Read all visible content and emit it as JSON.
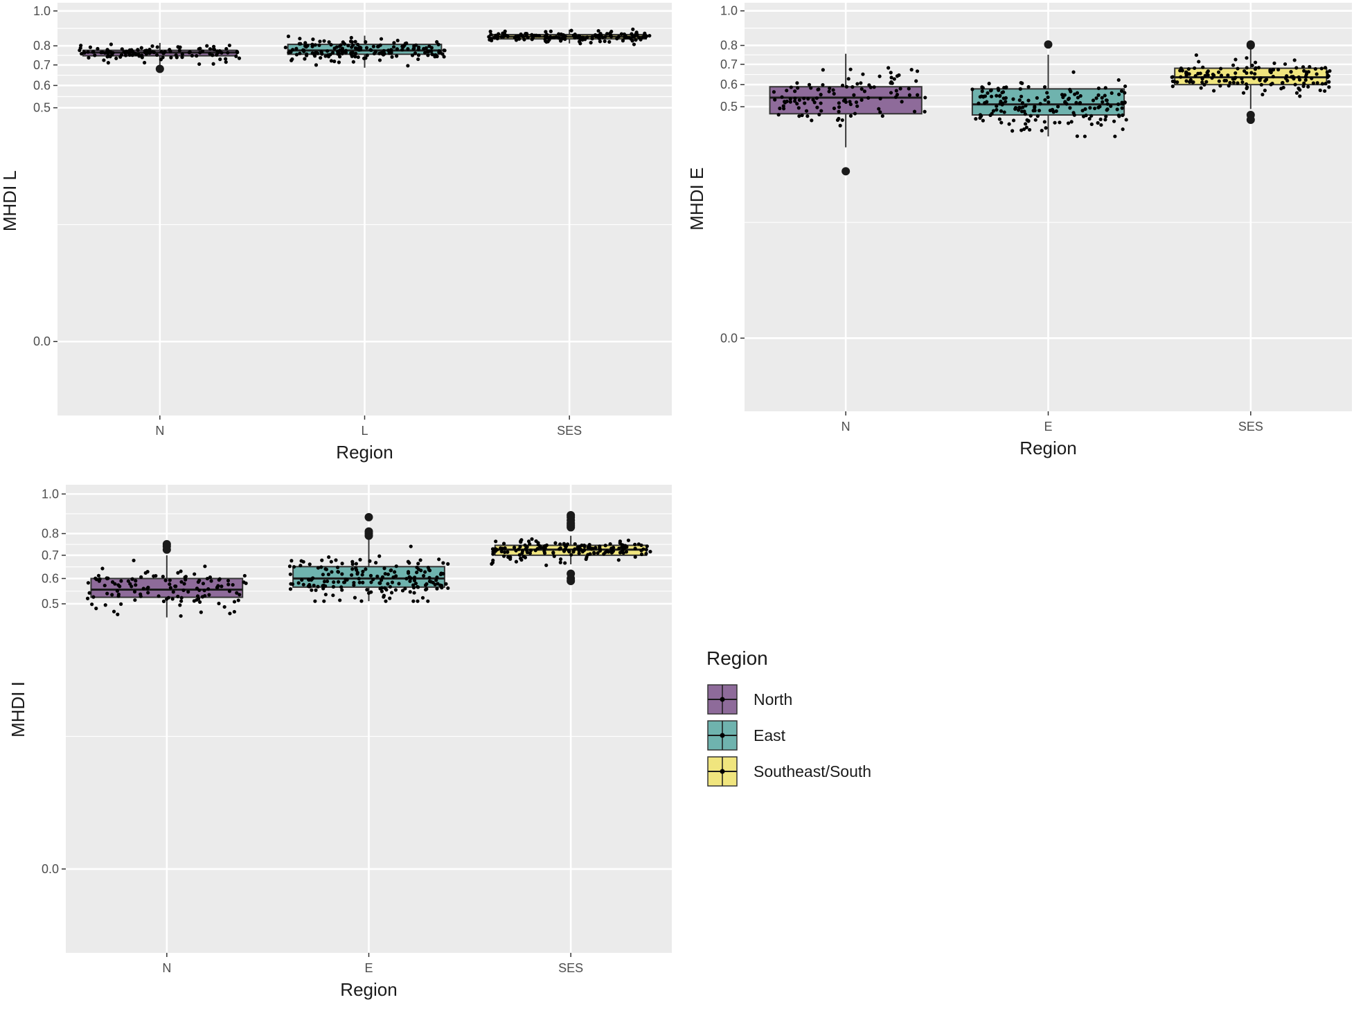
{
  "chart_data": [
    {
      "id": "mhdi-l",
      "type": "boxplot",
      "xlabel": "Region",
      "ylabel": "MHDI L",
      "categories": [
        "N",
        "L",
        "SES"
      ],
      "y_ticks": [
        0.0,
        0.5,
        0.6,
        0.7,
        0.8,
        1.0
      ],
      "y_tick_labels": [
        "0.0",
        "0.5",
        "0.6",
        "0.7",
        "0.8",
        "1.0"
      ],
      "ylim": [
        -0.05,
        1.05
      ],
      "y_scale": "sqrt",
      "grid": true,
      "boxes": [
        {
          "category": "N",
          "region": "North",
          "q1": 0.747,
          "median": 0.764,
          "q3": 0.776,
          "whisker_low": 0.7,
          "whisker_high": 0.816,
          "outliers": [
            0.68
          ],
          "spread": 0.028,
          "n": 120,
          "lo": 0.68,
          "hi": 0.82
        },
        {
          "category": "L",
          "region": "East",
          "q1": 0.755,
          "median": 0.775,
          "q3": 0.808,
          "whisker_low": 0.686,
          "whisker_high": 0.856,
          "outliers": [],
          "spread": 0.04,
          "n": 170,
          "lo": 0.675,
          "hi": 0.86
        },
        {
          "category": "SES",
          "region": "Southeast/South",
          "q1": 0.838,
          "median": 0.85,
          "q3": 0.862,
          "whisker_low": 0.813,
          "whisker_high": 0.89,
          "outliers": [],
          "spread": 0.02,
          "n": 140,
          "lo": 0.805,
          "hi": 0.892
        }
      ]
    },
    {
      "id": "mhdi-e",
      "type": "boxplot",
      "xlabel": "Region",
      "ylabel": "MHDI E",
      "categories": [
        "N",
        "E",
        "SES"
      ],
      "y_ticks": [
        0.0,
        0.5,
        0.6,
        0.7,
        0.8,
        1.0
      ],
      "y_tick_labels": [
        "0.0",
        "0.5",
        "0.6",
        "0.7",
        "0.8",
        "1.0"
      ],
      "ylim": [
        -0.05,
        1.05
      ],
      "y_scale": "sqrt",
      "grid": true,
      "boxes": [
        {
          "category": "N",
          "region": "North",
          "q1": 0.47,
          "median": 0.54,
          "q3": 0.59,
          "whisker_low": 0.34,
          "whisker_high": 0.755,
          "outliers": [
            0.26
          ],
          "spread": 0.08,
          "n": 110,
          "lo": 0.26,
          "hi": 0.76
        },
        {
          "category": "E",
          "region": "East",
          "q1": 0.465,
          "median": 0.51,
          "q3": 0.58,
          "whisker_low": 0.38,
          "whisker_high": 0.75,
          "outliers": [
            0.805
          ],
          "spread": 0.08,
          "n": 180,
          "lo": 0.38,
          "hi": 0.81
        },
        {
          "category": "SES",
          "region": "Southeast/South",
          "q1": 0.6,
          "median": 0.635,
          "q3": 0.68,
          "whisker_low": 0.49,
          "whisker_high": 0.78,
          "outliers": [
            0.445,
            0.465,
            0.8,
            0.805
          ],
          "spread": 0.05,
          "n": 150,
          "lo": 0.47,
          "hi": 0.81
        }
      ]
    },
    {
      "id": "mhdi-i",
      "type": "boxplot",
      "xlabel": "Region",
      "ylabel": "MHDI I",
      "categories": [
        "N",
        "E",
        "SES"
      ],
      "y_ticks": [
        0.0,
        0.5,
        0.6,
        0.7,
        0.8,
        1.0
      ],
      "y_tick_labels": [
        "0.0",
        "0.5",
        "0.6",
        "0.7",
        "0.8",
        "1.0"
      ],
      "ylim": [
        -0.05,
        1.05
      ],
      "y_scale": "sqrt",
      "grid": true,
      "boxes": [
        {
          "category": "N",
          "region": "North",
          "q1": 0.525,
          "median": 0.555,
          "q3": 0.6,
          "whisker_low": 0.45,
          "whisker_high": 0.7,
          "outliers": [
            0.725,
            0.74,
            0.75
          ],
          "spread": 0.06,
          "n": 120,
          "lo": 0.44,
          "hi": 0.75
        },
        {
          "category": "E",
          "region": "East",
          "q1": 0.565,
          "median": 0.6,
          "q3": 0.65,
          "whisker_low": 0.51,
          "whisker_high": 0.78,
          "outliers": [
            0.79,
            0.8,
            0.81,
            0.88
          ],
          "spread": 0.06,
          "n": 180,
          "lo": 0.51,
          "hi": 0.88
        },
        {
          "category": "SES",
          "region": "Southeast/South",
          "q1": 0.7,
          "median": 0.725,
          "q3": 0.745,
          "whisker_low": 0.66,
          "whisker_high": 0.79,
          "outliers": [
            0.59,
            0.6,
            0.62,
            0.83,
            0.84,
            0.85,
            0.865,
            0.88,
            0.89
          ],
          "spread": 0.03,
          "n": 160,
          "lo": 0.595,
          "hi": 0.89
        }
      ]
    }
  ],
  "legend": {
    "title": "Region",
    "position": "right",
    "items": [
      {
        "label": "North",
        "color": "#8e6b9a"
      },
      {
        "label": "East",
        "color": "#6fb3ae"
      },
      {
        "label": "Southeast/South",
        "color": "#f0e57e"
      }
    ]
  },
  "colors": {
    "panel_bg": "#ebebeb",
    "grid": "#ffffff",
    "points": "#000000",
    "box_stroke": "#333333"
  }
}
